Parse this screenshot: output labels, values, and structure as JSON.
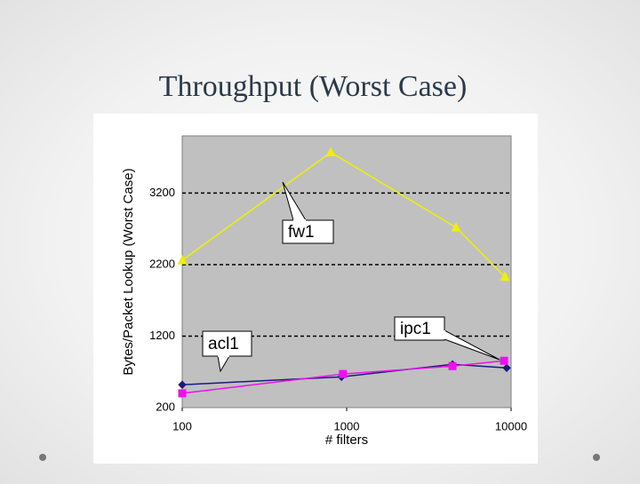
{
  "title": "Throughput (Worst Case)",
  "chart_data": {
    "type": "line",
    "y_label": "Bytes/Packet Lookup (Worst Case)",
    "x_label": "# filters",
    "x_scale": "log",
    "xlim": [
      100,
      10000
    ],
    "xticks": [
      100,
      1000,
      10000
    ],
    "ylim": [
      200,
      4000
    ],
    "yticks": [
      200,
      1200,
      2200,
      3200
    ],
    "grid": true,
    "series": [
      {
        "name": "fw1",
        "color": "#f0f000",
        "marker": "triangle",
        "x": [
          100,
          800,
          4620,
          9160
        ],
        "values": [
          2260,
          3770,
          2720,
          2030
        ]
      },
      {
        "name": "acl1",
        "color": "#1a1a7a",
        "marker": "diamond",
        "x": [
          100,
          930,
          4400,
          9400
        ],
        "values": [
          520,
          630,
          805,
          755
        ]
      },
      {
        "name": "ipc1",
        "color": "#ee10ee",
        "marker": "square",
        "x": [
          100,
          950,
          4400,
          9060
        ],
        "values": [
          400,
          670,
          780,
          855
        ]
      }
    ]
  }
}
